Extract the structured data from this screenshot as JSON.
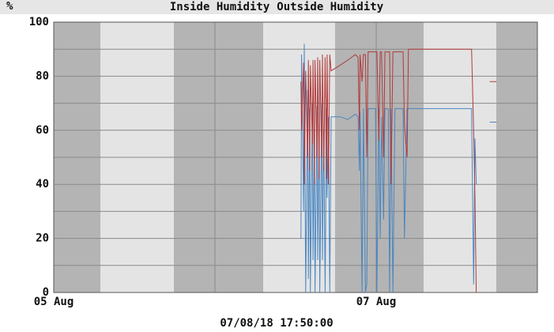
{
  "chart_data": {
    "type": "line",
    "title_parts": [
      "Inside Humidity",
      "Outside Humidity"
    ],
    "unit": "%",
    "timestamp": "07/08/18 17:50:00",
    "x": [
      36.8,
      36.9,
      37.2,
      37.3,
      37.5,
      37.8,
      37.9,
      38.1,
      38.2,
      38.5,
      38.6,
      38.8,
      38.9,
      39.2,
      39.3,
      39.5,
      39.6,
      39.9,
      40.0,
      40.2,
      40.4,
      40.6,
      40.7,
      40.9,
      41.1,
      41.3,
      42.6,
      43.8,
      44.9,
      45.3,
      45.5,
      45.6,
      45.9,
      46.1,
      46.4,
      46.6,
      46.8,
      47.9,
      48.1,
      48.4,
      48.6,
      48.8,
      49.1,
      49.3,
      49.8,
      50.0,
      50.2,
      50.5,
      50.8,
      52.0,
      52.2,
      52.6,
      52.8,
      55.5,
      57.9,
      61.4,
      62.2,
      62.5,
      62.7,
      62.9,
      63.5,
      64.9,
      65.9
    ],
    "series": [
      {
        "name": "Inside Humidity",
        "color": "#4a86c0",
        "values": [
          20,
          88,
          30,
          92,
          0,
          75,
          5,
          68,
          0,
          70,
          12,
          58,
          0,
          69,
          12,
          62,
          0,
          70,
          12,
          60,
          0,
          68,
          35,
          65,
          0,
          65,
          65,
          64,
          66,
          65,
          45,
          67,
          0,
          68,
          0,
          3,
          68,
          68,
          0,
          68,
          20,
          65,
          27,
          68,
          68,
          0,
          68,
          0,
          68,
          68,
          20,
          68,
          68,
          68,
          68,
          68,
          68,
          3,
          57,
          40,
          null,
          63,
          63
        ]
      },
      {
        "name": "Outside Humidity",
        "color": "#b03a3a",
        "values": [
          78,
          60,
          85,
          40,
          82,
          50,
          86,
          45,
          84,
          55,
          86,
          40,
          86,
          50,
          87,
          42,
          86,
          50,
          88,
          45,
          87,
          42,
          88,
          40,
          88,
          82,
          84,
          86,
          88,
          87,
          60,
          88,
          78,
          88,
          88,
          50,
          89,
          89,
          89,
          56,
          89,
          89,
          50,
          89,
          89,
          89,
          40,
          89,
          89,
          89,
          62,
          50,
          90,
          90,
          90,
          90,
          90,
          60,
          35,
          0,
          null,
          78,
          78
        ]
      }
    ],
    "xlim": [
      0,
      72
    ],
    "xticks": [
      {
        "value": 0,
        "label": "05 Aug"
      },
      {
        "value": 48,
        "label": "07 Aug"
      }
    ],
    "xgrid": [
      24,
      72
    ],
    "ylim": [
      0,
      100
    ],
    "yticks": [
      0,
      20,
      40,
      60,
      80,
      100
    ],
    "yminor": [
      10,
      30,
      50,
      70,
      90
    ],
    "grid": true
  }
}
